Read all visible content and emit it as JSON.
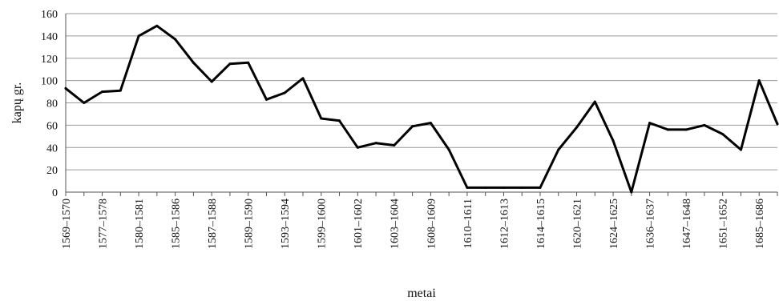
{
  "chart_data": {
    "type": "line",
    "title": "",
    "xlabel": "metai",
    "ylabel": "kapų gr.",
    "ylim": [
      0,
      160
    ],
    "yticks": [
      "0",
      "20",
      "40",
      "60",
      "80",
      "100",
      "120",
      "140",
      "160"
    ],
    "grid": true,
    "legend": "none",
    "colors": {
      "line": "#000000",
      "grid": "#9a9a9a"
    },
    "x_tick_labels": [
      "1569–1570",
      "1577–1578",
      "1580–1581",
      "1585–1586",
      "1587–1588",
      "1589–1590",
      "1593–1594",
      "1599–1600",
      "1601–1602",
      "1603–1604",
      "1608–1609",
      "1610–1611",
      "1612–1613",
      "1614–1615",
      "1620–1621",
      "1624–1625",
      "1636–1637",
      "1647–1648",
      "1651–1652",
      "1685–1686"
    ],
    "series": [
      {
        "values": [
          93,
          80,
          90,
          91,
          140,
          149,
          137,
          116,
          99,
          115,
          116,
          83,
          89,
          102,
          66,
          64,
          40,
          44,
          42,
          59,
          62,
          38,
          4,
          4,
          4,
          4,
          4,
          38,
          58,
          81,
          46,
          0,
          62,
          56,
          56,
          60,
          52,
          38,
          100,
          61
        ]
      }
    ]
  }
}
